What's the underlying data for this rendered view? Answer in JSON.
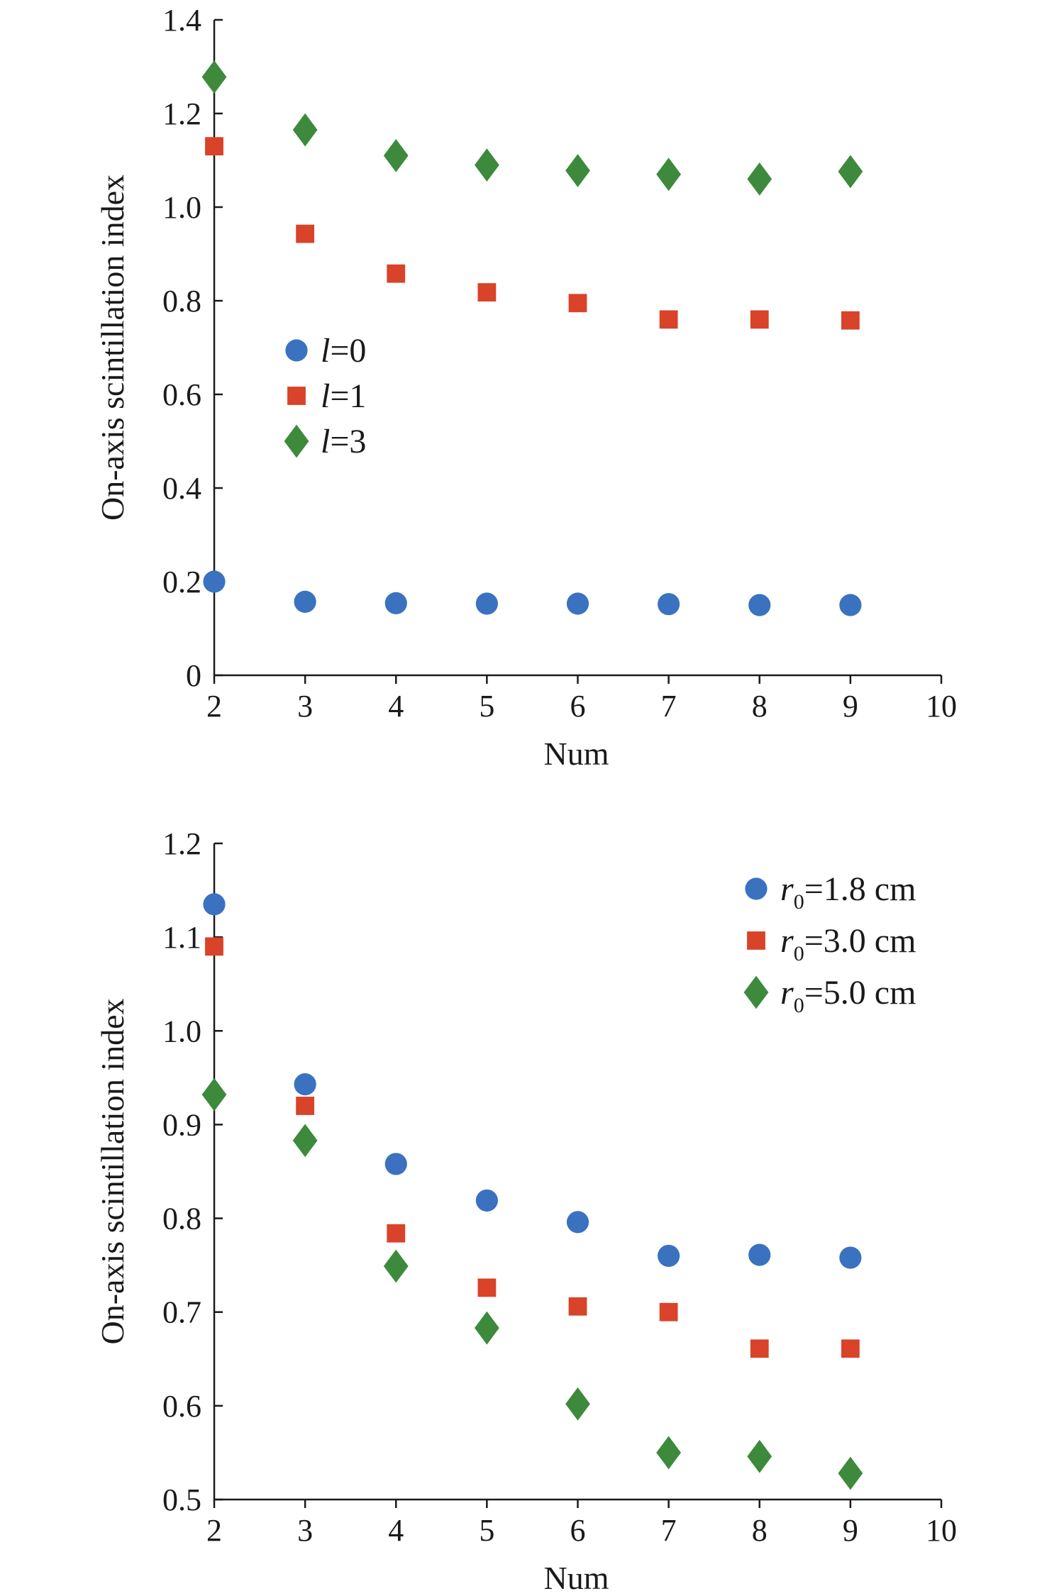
{
  "chart_data": [
    {
      "type": "scatter",
      "title": "",
      "xlabel": "Num",
      "ylabel": "On-axis scintillation index",
      "xlim": [
        2,
        10
      ],
      "ylim": [
        0,
        1.4
      ],
      "xticks": [
        "2",
        "3",
        "4",
        "5",
        "6",
        "7",
        "8",
        "9",
        "10"
      ],
      "yticks": [
        "0",
        "0.2",
        "0.4",
        "0.6",
        "0.8",
        "1.0",
        "1.2",
        "1.4"
      ],
      "grid": false,
      "legend_position": "left-middle",
      "x": [
        2,
        3,
        4,
        5,
        6,
        7,
        8,
        9
      ],
      "series": [
        {
          "name": "l=0",
          "name_italic": "l",
          "name_rest": "=0",
          "marker": "circle",
          "color": "#3a72c0",
          "values": [
            0.2,
            0.157,
            0.154,
            0.153,
            0.153,
            0.152,
            0.15,
            0.15
          ]
        },
        {
          "name": "l=1",
          "name_italic": "l",
          "name_rest": "=1",
          "marker": "square",
          "color": "#d8432a",
          "values": [
            1.13,
            0.943,
            0.858,
            0.818,
            0.795,
            0.76,
            0.76,
            0.758
          ]
        },
        {
          "name": "l=3",
          "name_italic": "l",
          "name_rest": "=3",
          "marker": "diamond",
          "color": "#3d8a3d",
          "values": [
            1.278,
            1.165,
            1.11,
            1.09,
            1.078,
            1.07,
            1.06,
            1.076
          ]
        }
      ]
    },
    {
      "type": "scatter",
      "title": "",
      "xlabel": "Num",
      "ylabel": "On-axis scintillation index",
      "xlim": [
        2,
        10
      ],
      "ylim": [
        0.5,
        1.2
      ],
      "xticks": [
        "2",
        "3",
        "4",
        "5",
        "6",
        "7",
        "8",
        "9",
        "10"
      ],
      "yticks": [
        "0.5",
        "0.6",
        "0.7",
        "0.8",
        "0.9",
        "1.0",
        "1.1",
        "1.2"
      ],
      "grid": false,
      "legend_position": "top-right",
      "x": [
        2,
        3,
        4,
        5,
        6,
        7,
        8,
        9
      ],
      "series": [
        {
          "name": "r0=1.8 cm",
          "name_italic": "r",
          "name_sub": "0",
          "name_rest": "=1.8 cm",
          "marker": "circle",
          "color": "#3a72c0",
          "values": [
            1.135,
            0.943,
            0.858,
            0.819,
            0.796,
            0.76,
            0.761,
            0.758
          ]
        },
        {
          "name": "r0=3.0 cm",
          "name_italic": "r",
          "name_sub": "0",
          "name_rest": "=3.0 cm",
          "marker": "square",
          "color": "#d8432a",
          "values": [
            1.09,
            0.92,
            0.784,
            0.726,
            0.706,
            0.7,
            0.661,
            0.661
          ]
        },
        {
          "name": "r0=5.0 cm",
          "name_italic": "r",
          "name_sub": "0",
          "name_rest": "=5.0 cm",
          "marker": "diamond",
          "color": "#3d8a3d",
          "values": [
            0.932,
            0.883,
            0.749,
            0.683,
            0.602,
            0.55,
            0.546,
            0.528
          ]
        }
      ]
    }
  ]
}
